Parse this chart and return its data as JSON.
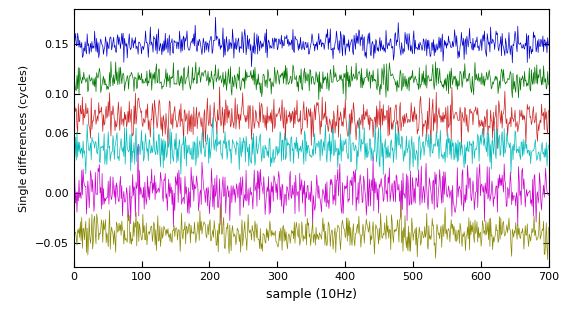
{
  "title": "",
  "xlabel": "sample (10Hz)",
  "ylabel": "Single differences (cycles)",
  "xlim": [
    0,
    700
  ],
  "ylim": [
    -0.075,
    0.185
  ],
  "yticks": [
    -0.05,
    0,
    0.06,
    0.1,
    0.15
  ],
  "xticks": [
    0,
    100,
    200,
    300,
    400,
    500,
    600,
    700
  ],
  "n_samples": 700,
  "offsets": [
    0.15,
    0.114,
    0.075,
    0.045,
    0.002,
    -0.04
  ],
  "amplitudes": [
    0.007,
    0.007,
    0.01,
    0.01,
    0.012,
    0.009
  ],
  "colors": [
    "#0000cc",
    "#007700",
    "#cc2222",
    "#00bbbb",
    "#cc00cc",
    "#888800"
  ],
  "seed": 42,
  "linewidth": 0.5,
  "background_color": "#ffffff",
  "figsize": [
    5.66,
    3.11
  ],
  "dpi": 100
}
